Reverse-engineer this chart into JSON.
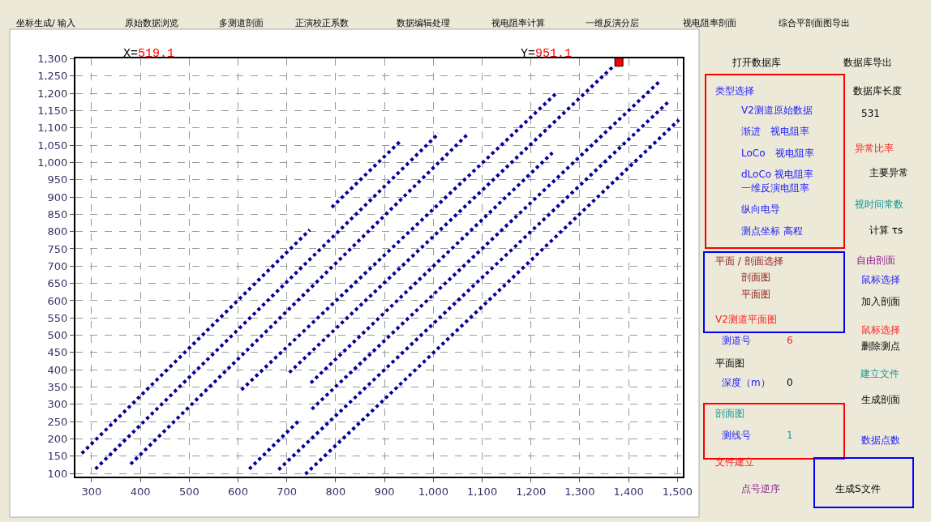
{
  "chart_data": [
    {
      "type": "line",
      "annotations": [
        "X=519.1",
        "Y=951.1"
      ],
      "xlim": [
        267,
        1511
      ],
      "ylim": [
        91,
        1301
      ],
      "xticks": [
        300,
        400,
        500,
        600,
        700,
        800,
        900,
        {
          "value": 1000,
          "label": "1,000"
        },
        {
          "value": 1100,
          "label": "1,100"
        },
        {
          "value": 1200,
          "label": "1,200"
        },
        {
          "value": 1300,
          "label": "1,300"
        },
        {
          "value": 1400,
          "label": "1,400"
        },
        {
          "value": 1500,
          "label": "1,500"
        }
      ],
      "yticks": [
        100,
        150,
        200,
        250,
        300,
        350,
        400,
        450,
        500,
        550,
        600,
        650,
        700,
        750,
        800,
        850,
        900,
        950,
        {
          "value": 1000,
          "label": "1,000"
        },
        {
          "value": 1050,
          "label": "1,050"
        },
        {
          "value": 1100,
          "label": "1,100"
        },
        {
          "value": 1150,
          "label": "1,150"
        },
        {
          "value": 1200,
          "label": "1,200"
        },
        {
          "value": 1250,
          "label": "1,250"
        },
        {
          "value": 1300,
          "label": "1,300"
        }
      ],
      "grid": true,
      "line_style": "dotted",
      "marker": "none",
      "series": [
        {
          "color": "#000099",
          "x": [
            280,
            747,
            770,
            792,
            935
          ],
          "values": [
            158,
            805,
            null,
            870,
            1065
          ]
        },
        {
          "color": "#000099",
          "x": [
            308,
            1011
          ],
          "values": [
            113,
            1084
          ]
        },
        {
          "color": "#000099",
          "x": [
            380,
            1072
          ],
          "values": [
            127,
            1084
          ]
        },
        {
          "color": "#000099",
          "x": [
            607,
            1251
          ],
          "values": [
            342,
            1199
          ]
        },
        {
          "color": "#000099",
          "x": [
            705,
            1367
          ],
          "values": [
            392,
            1276
          ]
        },
        {
          "color": "#000099",
          "x": [
            749,
            1244
          ],
          "values": [
            362,
            1028
          ]
        },
        {
          "color": "#000099",
          "x": [
            623,
            727,
            740,
            751,
            1466
          ],
          "values": [
            113,
            256,
            null,
            286,
            1238
          ]
        },
        {
          "color": "#000099",
          "x": [
            683,
            1482
          ],
          "values": [
            111,
            1176
          ]
        },
        {
          "color": "#000099",
          "x": [
            738,
            1503
          ],
          "values": [
            98,
            1123
          ]
        },
        {
          "type": "scatter",
          "marker": "square",
          "color": "#ff0000",
          "x": [
            1380
          ],
          "values": [
            1290
          ]
        }
      ]
    },
    {
      "type": "other",
      "annotations": [
        "坐标生成/ 输入",
        "原始数据浏览",
        "多测道剖面",
        "正演校正系数",
        "数据编辑处理",
        "视电阻率计算",
        "一维反演分层",
        "视电阻率剖面",
        "综合平剖面图导出",
        "打开数据库",
        "数据库导出",
        "类型选择",
        "V2测道原始数据",
        "渐进　视电阻率",
        "LoCo　视电阻率",
        "dLoCo 视电阻率",
        "一维反演电阻率",
        "纵向电导",
        "测点坐标 高程",
        "数据库长度",
        "531",
        "异常比率",
        "主要异常",
        "视时间常数",
        "计算 τs",
        "平面 / 剖面选择",
        "剖面图",
        "平面图",
        "自由剖面",
        "鼠标选择",
        "加入剖面",
        "V2测道平面图",
        "测道号",
        "6",
        "鼠标选择",
        "删除测点",
        "平面图",
        "深度（m）",
        "0",
        "建立文件",
        "生成剖面",
        "剖面图",
        "测线号",
        "1",
        "数据点数",
        "文件建立",
        "点号逆序",
        "生成S文件"
      ]
    }
  ]
}
